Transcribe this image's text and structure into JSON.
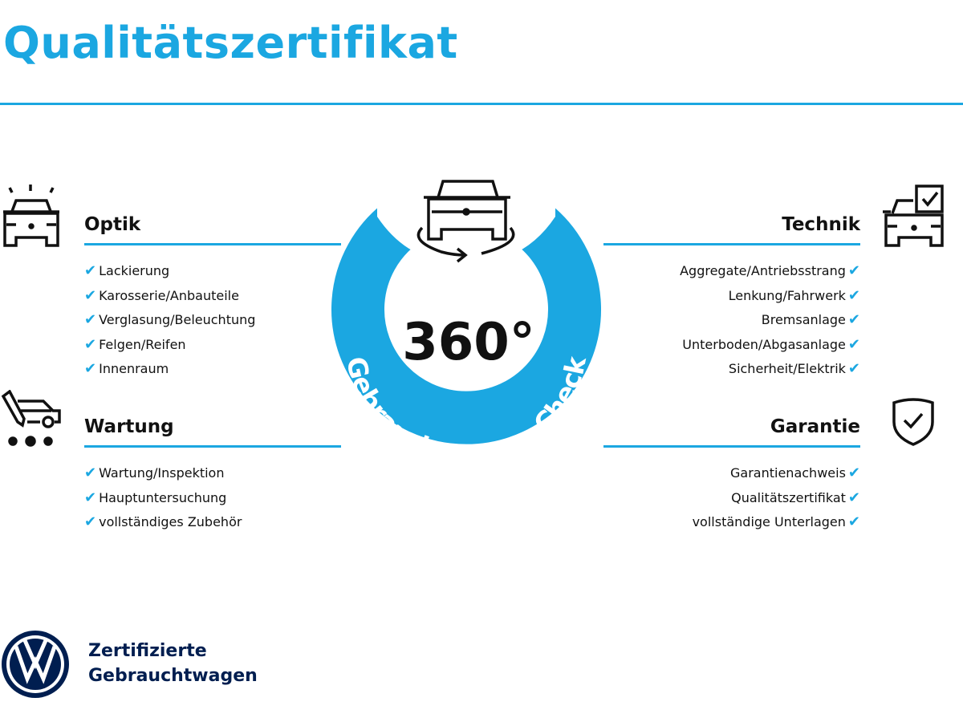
{
  "title": "Qualitätszertifikat",
  "center": {
    "big_text": "360°",
    "ring_text": "Gebrauchtwagen-Check"
  },
  "sections": {
    "optik": {
      "heading": "Optik",
      "items": [
        "Lackierung",
        "Karosserie/Anbauteile",
        "Verglasung/Beleuchtung",
        "Felgen/Reifen",
        "Innenraum"
      ]
    },
    "wartung": {
      "heading": "Wartung",
      "items": [
        "Wartung/Inspektion",
        "Hauptuntersuchung",
        "vollständiges Zubehör"
      ]
    },
    "technik": {
      "heading": "Technik",
      "items": [
        "Aggregate/Antriebsstrang",
        "Lenkung/Fahrwerk",
        "Bremsanlage",
        "Unterboden/Abgasanlage",
        "Sicherheit/Elektrik"
      ]
    },
    "garantie": {
      "heading": "Garantie",
      "items": [
        "Garantienachweis",
        "Qualitätszertifikat",
        "vollständige Unterlagen"
      ]
    }
  },
  "check_symbol": "✔",
  "logo": {
    "line1": "Zertifizierte",
    "line2": "Gebrauchtwagen"
  },
  "colors": {
    "accent": "#1ba7e1",
    "brand_navy": "#001e50",
    "text": "#111111"
  }
}
